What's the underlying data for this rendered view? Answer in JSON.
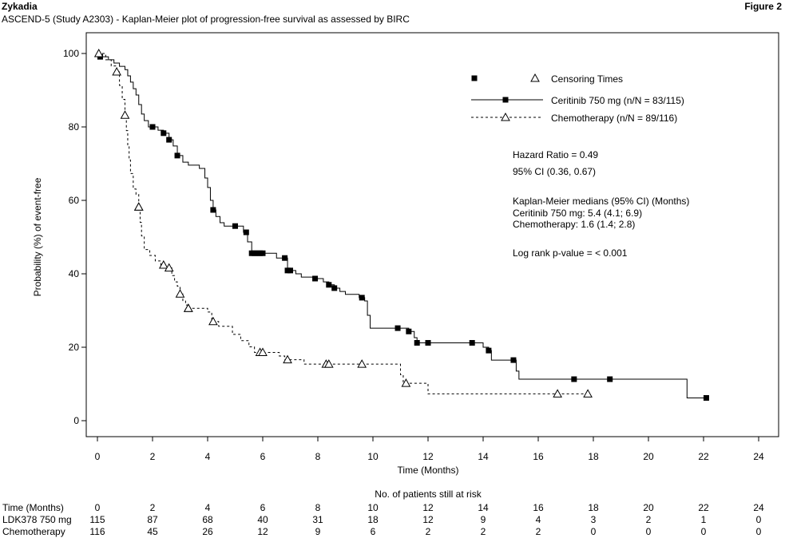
{
  "header": {
    "brand": "Zykadia",
    "figure_label": "Figure 2",
    "subtitle": "ASCEND-5 (Study A2303) - Kaplan-Meier plot of progression-free survival as assessed by BIRC"
  },
  "chart_data": {
    "type": "line",
    "xlabel": "Time (Months)",
    "ylabel": "Probability (%) of event-free",
    "xlim": [
      0,
      24
    ],
    "ylim": [
      0,
      100
    ],
    "xticks": [
      0,
      2,
      4,
      6,
      8,
      10,
      12,
      14,
      16,
      18,
      20,
      22,
      24
    ],
    "yticks": [
      0,
      20,
      40,
      60,
      80,
      100
    ],
    "grid": false,
    "legend": {
      "placement": "top-right",
      "censor_label": "Censoring Times",
      "entries": [
        "Ceritinib 750 mg (n/N = 83/115)",
        "Chemotherapy (n/N = 89/116)"
      ]
    },
    "annotations": [
      "Hazard Ratio = 0.49",
      "95% CI (0.36, 0.67)",
      "Kaplan-Meier medians (95% CI) (Months)",
      "Ceritinib 750 mg: 5.4 (4.1; 6.9)",
      "Chemotherapy: 1.6 (1.4; 2.8)",
      "Log rank p-value = < 0.001"
    ],
    "series": [
      {
        "name": "Ceritinib 750 mg (n/N = 83/115)",
        "line_style": "solid",
        "marker": "filled-square",
        "steps": [
          [
            0,
            100
          ],
          [
            0.1,
            99.1
          ],
          [
            0.4,
            98.3
          ],
          [
            0.6,
            97.4
          ],
          [
            0.8,
            96.5
          ],
          [
            1,
            95.6
          ],
          [
            1.1,
            93.9
          ],
          [
            1.2,
            92.2
          ],
          [
            1.3,
            90.4
          ],
          [
            1.4,
            88.7
          ],
          [
            1.5,
            86.1
          ],
          [
            1.6,
            83.5
          ],
          [
            1.7,
            81.7
          ],
          [
            1.85,
            80
          ],
          [
            2.2,
            79.1
          ],
          [
            2.4,
            78.3
          ],
          [
            2.6,
            76.5
          ],
          [
            2.75,
            74.8
          ],
          [
            2.9,
            72.2
          ],
          [
            3.1,
            70.4
          ],
          [
            3.3,
            69.6
          ],
          [
            3.7,
            68.7
          ],
          [
            3.9,
            66.1
          ],
          [
            4.0,
            63.5
          ],
          [
            4.1,
            60
          ],
          [
            4.2,
            57.4
          ],
          [
            4.3,
            55.6
          ],
          [
            4.45,
            53.9
          ],
          [
            4.6,
            53
          ],
          [
            5.0,
            53
          ],
          [
            5.3,
            51.3
          ],
          [
            5.45,
            48.7
          ],
          [
            5.6,
            45.6
          ],
          [
            6.0,
            45.6
          ],
          [
            6.5,
            44.3
          ],
          [
            6.9,
            40.9
          ],
          [
            7.2,
            40
          ],
          [
            7.4,
            39.1
          ],
          [
            7.9,
            38.7
          ],
          [
            8.2,
            37.8
          ],
          [
            8.4,
            37
          ],
          [
            8.6,
            36.1
          ],
          [
            8.8,
            35.2
          ],
          [
            9.0,
            34.4
          ],
          [
            9.5,
            33.5
          ],
          [
            9.7,
            32.6
          ],
          [
            9.8,
            28.7
          ],
          [
            9.9,
            25.2
          ],
          [
            11.0,
            25.2
          ],
          [
            11.3,
            24.3
          ],
          [
            11.5,
            22.6
          ],
          [
            11.6,
            21.2
          ],
          [
            13.6,
            21.2
          ],
          [
            14.0,
            20
          ],
          [
            14.2,
            19.1
          ],
          [
            14.3,
            16.5
          ],
          [
            15.1,
            16.5
          ],
          [
            15.2,
            13.5
          ],
          [
            15.3,
            11.3
          ],
          [
            21.3,
            11.3
          ],
          [
            21.4,
            6.2
          ],
          [
            22.1,
            6.2
          ]
        ],
        "censor_x": [
          0.1,
          2.0,
          2.4,
          2.6,
          2.9,
          4.2,
          5.0,
          5.4,
          5.6,
          5.7,
          5.8,
          5.9,
          6.0,
          6.8,
          6.9,
          7.0,
          7.9,
          8.4,
          8.6,
          9.6,
          10.9,
          11.3,
          11.6,
          12.0,
          13.6,
          14.2,
          15.1,
          17.3,
          18.6,
          22.1
        ]
      },
      {
        "name": "Chemotherapy (n/N = 89/116)",
        "line_style": "dashed",
        "marker": "open-triangle",
        "steps": [
          [
            0,
            100
          ],
          [
            0.3,
            98.3
          ],
          [
            0.5,
            96.6
          ],
          [
            0.7,
            95
          ],
          [
            0.8,
            91.3
          ],
          [
            0.9,
            87.5
          ],
          [
            1.0,
            83.2
          ],
          [
            1.05,
            79
          ],
          [
            1.1,
            74.8
          ],
          [
            1.15,
            71
          ],
          [
            1.2,
            67.3
          ],
          [
            1.3,
            63.1
          ],
          [
            1.4,
            61.6
          ],
          [
            1.5,
            58.2
          ],
          [
            1.55,
            54
          ],
          [
            1.6,
            50.3
          ],
          [
            1.7,
            46.6
          ],
          [
            1.9,
            45
          ],
          [
            2.1,
            43.5
          ],
          [
            2.3,
            42.4
          ],
          [
            2.5,
            41.6
          ],
          [
            2.7,
            39.5
          ],
          [
            2.8,
            37.8
          ],
          [
            2.9,
            36.6
          ],
          [
            3.0,
            34.5
          ],
          [
            3.1,
            32.7
          ],
          [
            3.2,
            31.5
          ],
          [
            3.3,
            30.6
          ],
          [
            3.8,
            30.6
          ],
          [
            4.0,
            29.6
          ],
          [
            4.15,
            27
          ],
          [
            4.4,
            25.7
          ],
          [
            4.8,
            25.7
          ],
          [
            4.9,
            23.5
          ],
          [
            5.2,
            21.8
          ],
          [
            5.5,
            20.1
          ],
          [
            5.7,
            18.6
          ],
          [
            6.5,
            18.6
          ],
          [
            6.6,
            17.6
          ],
          [
            6.8,
            16.6
          ],
          [
            7.2,
            16.6
          ],
          [
            7.5,
            15.4
          ],
          [
            10.9,
            15.4
          ],
          [
            11.0,
            12.5
          ],
          [
            11.1,
            10.2
          ],
          [
            11.5,
            10.2
          ],
          [
            12.0,
            7.3
          ],
          [
            17.8,
            7.3
          ]
        ],
        "censor_x": [
          0.05,
          0.7,
          1.0,
          1.5,
          1.5,
          2.4,
          2.6,
          3.0,
          3.3,
          3.3,
          4.2,
          5.9,
          6.0,
          6.9,
          8.3,
          8.4,
          9.6,
          11.2,
          16.7,
          17.8
        ]
      }
    ]
  },
  "risk_table": {
    "title": "No. of patients still at risk",
    "rows": [
      {
        "label": "Time (Months)",
        "values": [
          "0",
          "2",
          "4",
          "6",
          "8",
          "10",
          "12",
          "14",
          "16",
          "18",
          "20",
          "22",
          "24"
        ]
      },
      {
        "label": "LDK378 750 mg",
        "values": [
          "115",
          "87",
          "68",
          "40",
          "31",
          "18",
          "12",
          "9",
          "4",
          "3",
          "2",
          "1",
          "0"
        ]
      },
      {
        "label": "Chemotherapy",
        "values": [
          "116",
          "45",
          "26",
          "12",
          "9",
          "6",
          "2",
          "2",
          "2",
          "0",
          "0",
          "0",
          "0"
        ]
      }
    ]
  }
}
